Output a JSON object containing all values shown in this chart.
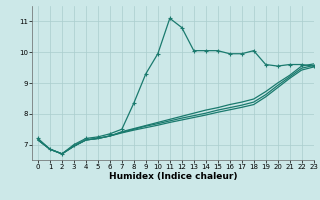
{
  "title": "",
  "xlabel": "Humidex (Indice chaleur)",
  "ylabel": "",
  "background_color": "#cce8e8",
  "line_color": "#1a7a6e",
  "grid_color": "#aacece",
  "xlim": [
    -0.5,
    23
  ],
  "ylim": [
    6.5,
    11.5
  ],
  "xticks": [
    0,
    1,
    2,
    3,
    4,
    5,
    6,
    7,
    8,
    9,
    10,
    11,
    12,
    13,
    14,
    15,
    16,
    17,
    18,
    19,
    20,
    21,
    22,
    23
  ],
  "yticks": [
    7,
    8,
    9,
    10,
    11
  ],
  "line1_x": [
    0,
    1,
    2,
    3,
    4,
    5,
    6,
    7,
    8,
    9,
    10,
    11,
    12,
    13,
    14,
    15,
    16,
    17,
    18,
    19,
    20,
    21,
    22,
    23
  ],
  "line1_y": [
    7.2,
    6.85,
    6.7,
    7.0,
    7.2,
    7.25,
    7.35,
    7.5,
    8.35,
    9.3,
    9.95,
    11.1,
    10.8,
    10.05,
    10.05,
    10.05,
    9.95,
    9.95,
    10.05,
    9.6,
    9.55,
    9.6,
    9.6,
    9.55
  ],
  "line2_x": [
    0,
    1,
    2,
    3,
    4,
    5,
    6,
    7,
    8,
    9,
    10,
    11,
    12,
    13,
    14,
    15,
    16,
    17,
    18,
    19,
    20,
    21,
    22,
    23
  ],
  "line2_y": [
    7.15,
    6.85,
    6.7,
    6.95,
    7.15,
    7.2,
    7.28,
    7.38,
    7.47,
    7.55,
    7.63,
    7.72,
    7.8,
    7.88,
    7.96,
    8.05,
    8.13,
    8.21,
    8.3,
    8.55,
    8.85,
    9.15,
    9.42,
    9.52
  ],
  "line3_x": [
    0,
    1,
    2,
    3,
    4,
    5,
    6,
    7,
    8,
    9,
    10,
    11,
    12,
    13,
    14,
    15,
    16,
    17,
    18,
    19,
    20,
    21,
    22,
    23
  ],
  "line3_y": [
    7.15,
    6.85,
    6.7,
    6.95,
    7.15,
    7.2,
    7.28,
    7.4,
    7.5,
    7.6,
    7.68,
    7.77,
    7.86,
    7.94,
    8.02,
    8.12,
    8.2,
    8.28,
    8.38,
    8.62,
    8.92,
    9.2,
    9.48,
    9.57
  ],
  "line4_x": [
    0,
    1,
    2,
    3,
    4,
    5,
    6,
    7,
    8,
    9,
    10,
    11,
    12,
    13,
    14,
    15,
    16,
    17,
    18,
    19,
    20,
    21,
    22,
    23
  ],
  "line4_y": [
    7.15,
    6.85,
    6.7,
    6.95,
    7.15,
    7.2,
    7.28,
    7.42,
    7.52,
    7.62,
    7.72,
    7.82,
    7.92,
    8.02,
    8.12,
    8.2,
    8.3,
    8.38,
    8.48,
    8.72,
    9.0,
    9.25,
    9.55,
    9.62
  ]
}
